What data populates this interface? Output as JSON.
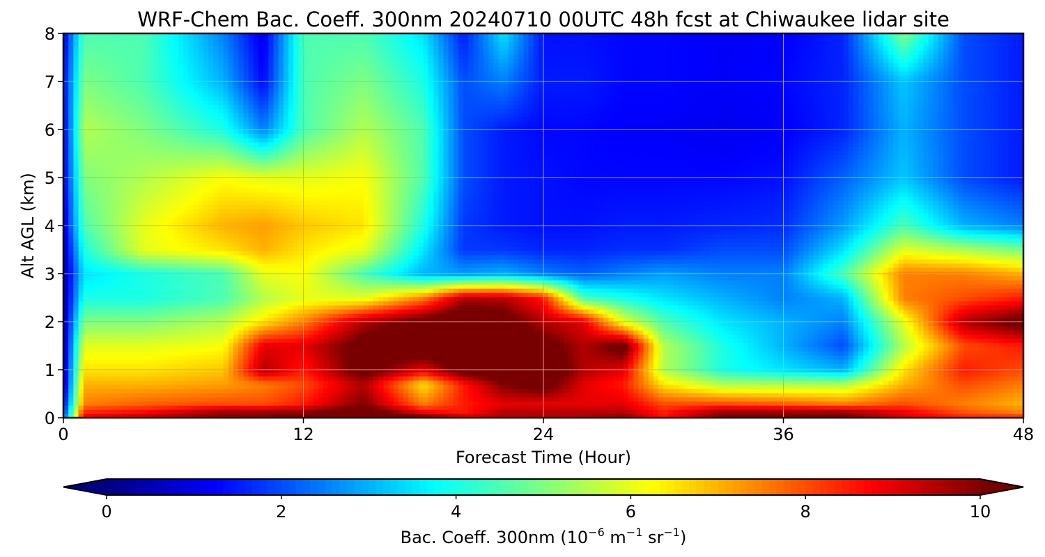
{
  "chart_data": {
    "type": "heatmap",
    "title": "WRF-Chem Bac. Coeff. 300nm  20240710 00UTC 48h fcst at Chiwaukee lidar site",
    "xlabel": "Forecast Time (Hour)",
    "ylabel": "Alt AGL (km)",
    "xlim": [
      0,
      48
    ],
    "ylim": [
      0,
      8
    ],
    "x_ticks": [
      "0",
      "12",
      "24",
      "36",
      "48"
    ],
    "y_ticks": [
      "0",
      "1",
      "2",
      "3",
      "4",
      "5",
      "6",
      "7",
      "8"
    ],
    "grid": true,
    "colormap": "jet",
    "colorbar": {
      "label_main": "Bac. Coeff. 300nm  (10",
      "label_exp1": "−6",
      "label_mid": " m",
      "label_exp2": "−1",
      "label_mid2": " sr",
      "label_exp3": "−1",
      "label_end": ")",
      "range": [
        0,
        10
      ],
      "ticks": [
        "0",
        "2",
        "4",
        "6",
        "8",
        "10"
      ],
      "extend": "both",
      "orientation": "horizontal",
      "placement": "bottom"
    },
    "x_hours": [
      0,
      1,
      4,
      8,
      10,
      12,
      15,
      18,
      20,
      22,
      24,
      26,
      28,
      30,
      33,
      36,
      39,
      42,
      45,
      48
    ],
    "z_km": [
      0,
      0.1,
      0.3,
      0.7,
      1.0,
      1.5,
      2.0,
      2.5,
      3.0,
      3.5,
      4.0,
      5.0,
      6.0,
      7.0,
      8.0
    ],
    "values": [
      [
        2.0,
        9.0,
        9.5,
        9.8,
        9.8,
        10.5,
        10.5,
        10.5,
        9.5,
        9.5,
        9.5,
        9.5,
        10.0,
        8.5,
        10.0,
        10.0,
        10.0,
        9.0,
        8.5,
        8.5
      ],
      [
        1.5,
        8.5,
        8.8,
        10.0,
        10.0,
        10.0,
        11.0,
        9.0,
        8.5,
        9.5,
        9.5,
        9.5,
        9.5,
        8.5,
        10.0,
        10.0,
        10.0,
        9.0,
        8.0,
        7.5
      ],
      [
        1.0,
        7.5,
        7.8,
        8.0,
        8.0,
        8.5,
        10.0,
        7.5,
        8.5,
        9.0,
        9.0,
        9.0,
        9.0,
        8.0,
        8.0,
        7.8,
        7.5,
        8.0,
        7.5,
        7.0
      ],
      [
        0.5,
        7.0,
        7.0,
        7.2,
        7.5,
        8.0,
        9.5,
        6.5,
        8.5,
        10.0,
        10.5,
        9.0,
        8.5,
        6.5,
        5.5,
        5.5,
        5.5,
        7.0,
        8.0,
        7.5
      ],
      [
        0.5,
        6.5,
        6.5,
        6.8,
        9.5,
        8.5,
        10.5,
        9.0,
        10.5,
        11.0,
        11.0,
        9.5,
        9.0,
        5.5,
        4.0,
        3.5,
        3.0,
        6.5,
        8.5,
        8.0
      ],
      [
        0.3,
        6.0,
        6.0,
        6.2,
        9.0,
        9.0,
        10.5,
        11.0,
        11.0,
        11.0,
        10.5,
        9.5,
        10.5,
        5.5,
        4.0,
        3.0,
        2.0,
        5.5,
        8.0,
        8.5
      ],
      [
        0.3,
        5.0,
        5.0,
        5.5,
        6.5,
        7.5,
        9.5,
        10.5,
        11.0,
        10.5,
        9.5,
        9.0,
        6.0,
        4.5,
        3.5,
        3.0,
        2.5,
        6.0,
        9.5,
        10.5
      ],
      [
        0.3,
        4.0,
        4.0,
        4.5,
        5.5,
        6.0,
        6.0,
        7.5,
        9.5,
        9.5,
        8.5,
        4.5,
        4.0,
        3.5,
        3.0,
        2.5,
        3.0,
        7.5,
        8.0,
        8.5
      ],
      [
        0.3,
        3.5,
        4.0,
        4.5,
        6.0,
        6.2,
        4.5,
        3.0,
        2.8,
        3.0,
        2.5,
        2.2,
        2.5,
        2.8,
        2.5,
        2.5,
        4.5,
        7.5,
        7.5,
        7.0
      ],
      [
        0.5,
        4.0,
        6.0,
        6.5,
        7.0,
        6.5,
        6.0,
        3.5,
        1.8,
        1.8,
        1.6,
        1.6,
        1.7,
        1.7,
        2.0,
        2.0,
        3.5,
        6.0,
        5.5,
        5.0
      ],
      [
        0.8,
        4.5,
        6.0,
        7.0,
        7.2,
        6.8,
        6.5,
        4.0,
        1.8,
        1.5,
        1.4,
        1.4,
        1.5,
        1.5,
        1.6,
        1.7,
        2.8,
        4.5,
        3.0,
        2.5
      ],
      [
        1.0,
        5.0,
        5.5,
        6.2,
        6.0,
        6.0,
        6.2,
        4.5,
        2.0,
        1.5,
        1.4,
        1.3,
        1.3,
        1.3,
        1.3,
        1.4,
        2.2,
        3.2,
        2.0,
        1.5
      ],
      [
        1.0,
        5.5,
        5.0,
        4.0,
        2.5,
        4.5,
        5.5,
        4.5,
        2.0,
        1.5,
        1.3,
        1.3,
        1.2,
        1.2,
        1.1,
        1.2,
        1.6,
        3.0,
        2.0,
        1.5
      ],
      [
        1.2,
        5.0,
        4.5,
        3.0,
        1.3,
        4.5,
        5.0,
        4.0,
        2.0,
        2.5,
        1.5,
        1.5,
        1.3,
        1.3,
        1.2,
        1.3,
        1.6,
        3.2,
        2.0,
        1.5
      ],
      [
        1.0,
        4.5,
        4.5,
        2.5,
        1.0,
        4.5,
        4.5,
        3.5,
        1.5,
        3.5,
        1.4,
        1.4,
        1.3,
        1.3,
        1.2,
        1.2,
        1.6,
        5.0,
        2.0,
        1.5
      ]
    ]
  }
}
